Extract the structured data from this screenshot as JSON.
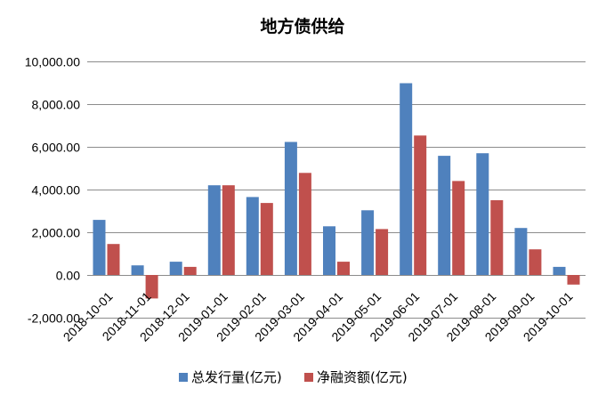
{
  "chart_data": {
    "type": "bar",
    "title": "地方债供给",
    "categories": [
      "2018-10-01",
      "2018-11-01",
      "2018-12-01",
      "2019-01-01",
      "2019-02-01",
      "2019-03-01",
      "2019-04-01",
      "2019-05-01",
      "2019-06-01",
      "2019-07-01",
      "2019-08-01",
      "2019-09-01",
      "2019-10-01"
    ],
    "series": [
      {
        "name": "总发行量(亿元)",
        "color": "#4f81bd",
        "values": [
          2580,
          450,
          620,
          4200,
          3650,
          6230,
          2280,
          3030,
          8980,
          5580,
          5700,
          2200,
          380
        ]
      },
      {
        "name": "净融资额(亿元)",
        "color": "#c0504d",
        "values": [
          1450,
          -1100,
          380,
          4200,
          3370,
          4780,
          620,
          2150,
          6530,
          4400,
          3500,
          1200,
          -450
        ]
      }
    ],
    "ylim": [
      -2000,
      10000
    ],
    "yticks": [
      -2000,
      0,
      2000,
      4000,
      6000,
      8000,
      10000
    ],
    "ytick_labels": [
      "-2,000.00",
      "0.00",
      "2,000.00",
      "4,000.00",
      "6,000.00",
      "8,000.00",
      "10,000.00"
    ],
    "grid": true,
    "legend": "bottom"
  }
}
